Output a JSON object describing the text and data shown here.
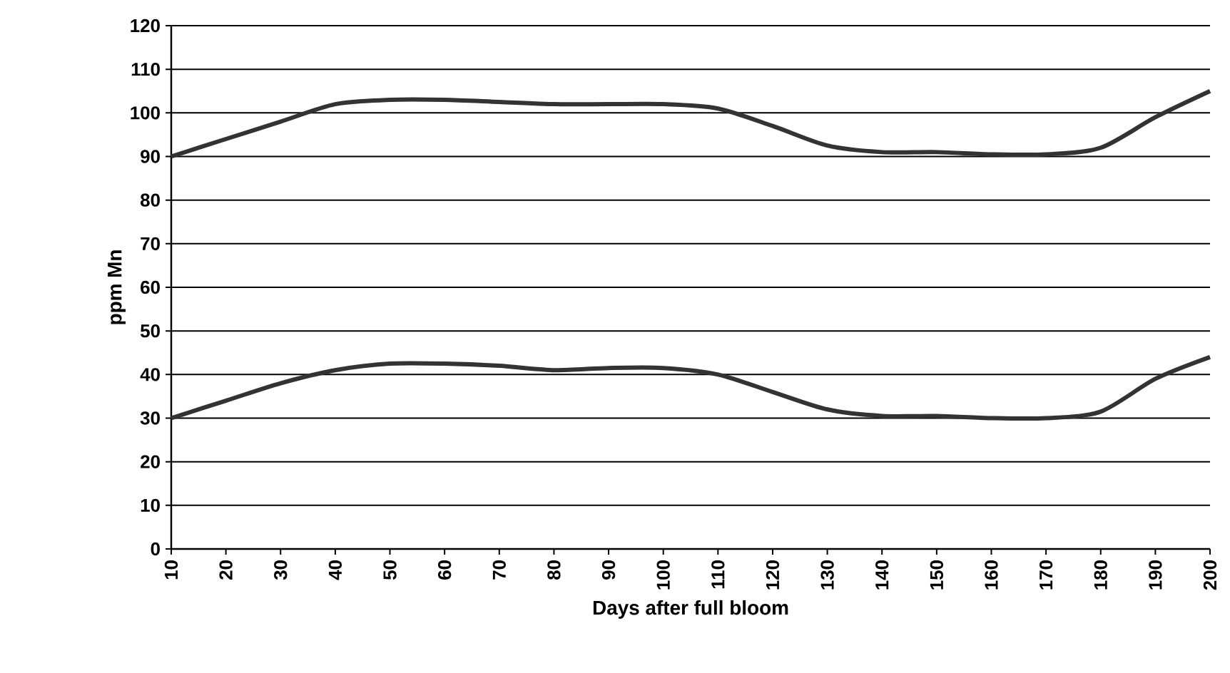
{
  "chart_data": {
    "type": "line",
    "xlabel": "Days after full bloom",
    "ylabel": "ppm Mn",
    "x": [
      10,
      20,
      30,
      40,
      50,
      60,
      70,
      80,
      90,
      100,
      110,
      120,
      130,
      140,
      150,
      160,
      170,
      180,
      190,
      200
    ],
    "series": [
      {
        "color": "#333333",
        "values": [
          90,
          94,
          98,
          102,
          103,
          103,
          102.5,
          102,
          102,
          102,
          101,
          97,
          92.5,
          91,
          91,
          90.5,
          90.5,
          92,
          99,
          105
        ]
      },
      {
        "color": "#333333",
        "values": [
          30,
          34,
          38,
          41,
          42.5,
          42.5,
          42,
          41,
          41.5,
          41.5,
          40,
          36,
          32,
          30.5,
          30.5,
          30,
          30,
          31.5,
          39,
          44
        ]
      }
    ],
    "xlim": [
      10,
      200
    ],
    "xticks": [
      10,
      20,
      30,
      40,
      50,
      60,
      70,
      80,
      90,
      100,
      110,
      120,
      130,
      140,
      150,
      160,
      170,
      180,
      190,
      200
    ],
    "ylim": [
      0,
      120
    ],
    "yticks": [
      0,
      10,
      20,
      30,
      40,
      50,
      60,
      70,
      80,
      90,
      100,
      110,
      120
    ],
    "grid": "y",
    "marker": "none",
    "line_style": "solid"
  }
}
